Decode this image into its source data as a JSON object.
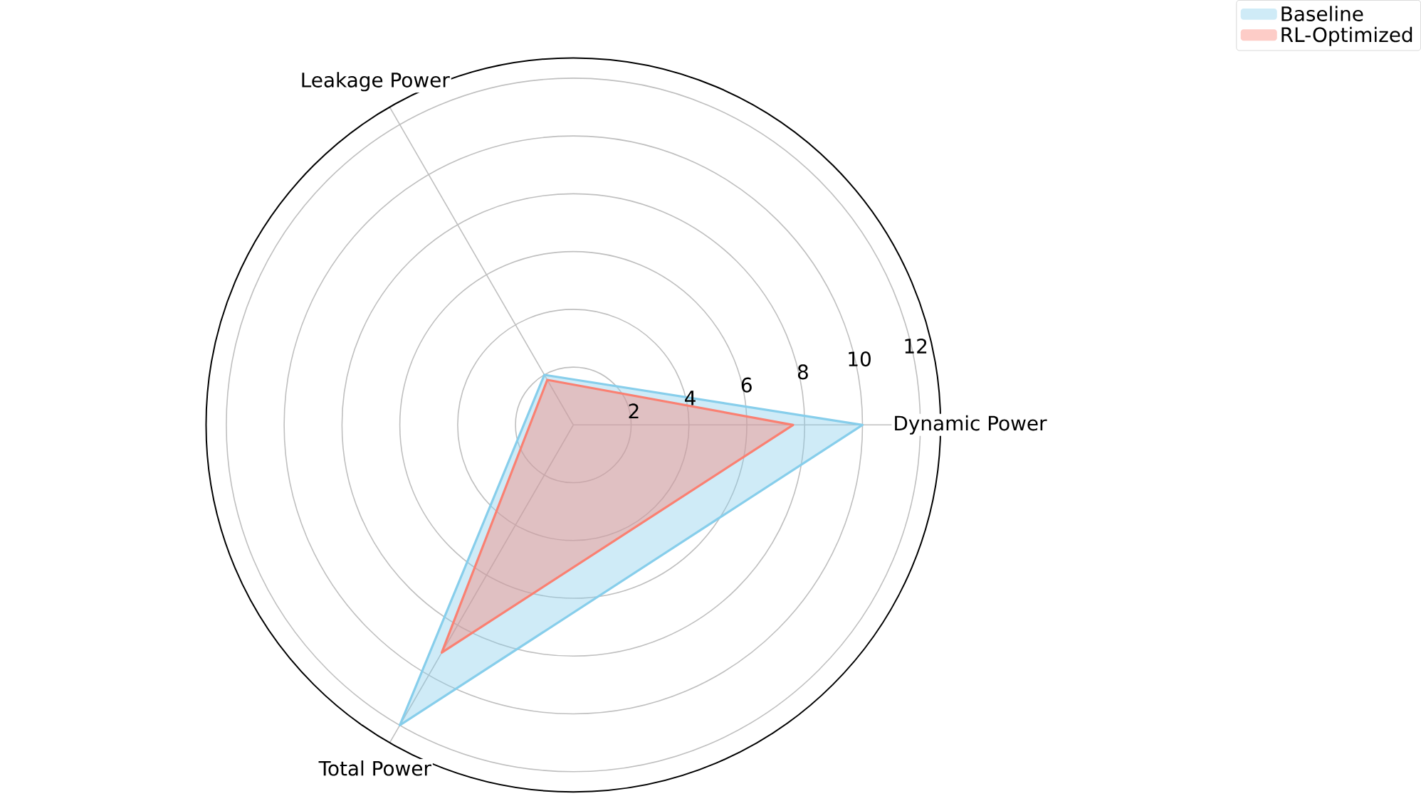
{
  "chart_data": {
    "type": "radar",
    "categories": [
      "Dynamic Power",
      "Total Power",
      "Leakage Power"
    ],
    "series": [
      {
        "name": "Baseline",
        "color": "#87ceeb",
        "values": [
          10,
          12,
          2.0
        ]
      },
      {
        "name": "RL-Optimized",
        "color": "#fa8072",
        "values": [
          7.6,
          9.1,
          1.8
        ]
      }
    ],
    "ylim": [
      0,
      12.7
    ],
    "yticks": [
      2,
      4,
      6,
      8,
      10,
      12
    ],
    "grid": true,
    "legend": "top right",
    "line_style": "solid"
  }
}
